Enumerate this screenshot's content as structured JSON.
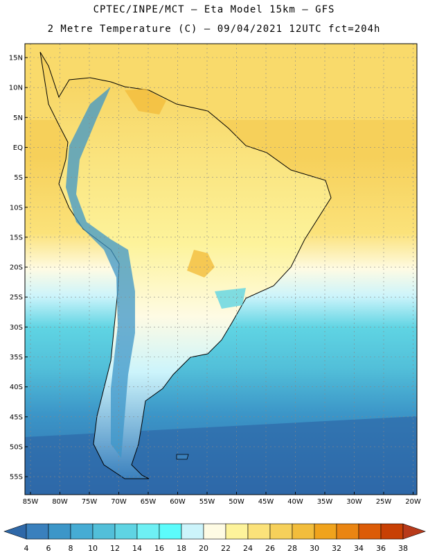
{
  "title_line1": "CPTEC/INPE/MCT –  Eta Model 15km – GFS",
  "title_line2": "2 Metre Temperature (C) – 09/04/2021 12UTC fct=204h",
  "lat_labels": [
    "15N",
    "10N",
    "5N",
    "EQ",
    "5S",
    "10S",
    "15S",
    "20S",
    "25S",
    "30S",
    "35S",
    "40S",
    "45S",
    "50S",
    "55S"
  ],
  "lon_labels": [
    "85W",
    "80W",
    "75W",
    "70W",
    "65W",
    "60W",
    "55W",
    "50W",
    "45W",
    "40W",
    "35W",
    "30W",
    "25W",
    "20W"
  ],
  "colorbar": {
    "labels": [
      "4",
      "6",
      "8",
      "10",
      "12",
      "14",
      "16",
      "18",
      "20",
      "22",
      "24",
      "26",
      "28",
      "30",
      "32",
      "34",
      "36",
      "38"
    ],
    "colors": [
      "#2e68a8",
      "#3a80bd",
      "#3c96c8",
      "#46acd4",
      "#52bfd9",
      "#5fd4e3",
      "#6ef0f4",
      "#5cfcfc",
      "#ccf4fb",
      "#fefbe4",
      "#fdf39b",
      "#fbe27a",
      "#f6d05a",
      "#f2bd3c",
      "#f0a31c",
      "#ea8512",
      "#dc5c08",
      "#c84004",
      "#b83a1a"
    ]
  }
}
